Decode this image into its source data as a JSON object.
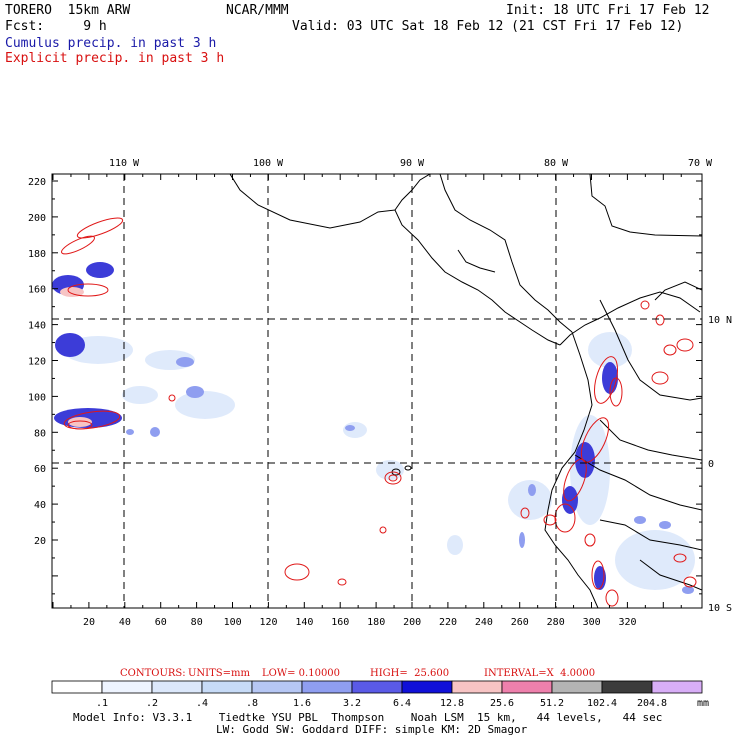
{
  "header": {
    "model": "TORERO  15km ARW",
    "org": "NCAR/MMM",
    "init": "Init: 18 UTC Fri 17 Feb 12",
    "fcst": "Fcst:     9 h",
    "valid": "Valid: 03 UTC Sat 18 Feb 12 (21 CST Fri 17 Feb 12)",
    "field1": "Cumulus precip. in past 3 h",
    "field2": "Explicit precip. in past 3 h"
  },
  "top_axis": [
    "110 W",
    "100 W",
    "90 W",
    "80 W",
    "70 W"
  ],
  "right_axis": [
    "10 N",
    "0",
    "10 S"
  ],
  "left_axis": [
    "220",
    "200",
    "180",
    "160",
    "140",
    "120",
    "100",
    "80",
    "60",
    "40",
    "20"
  ],
  "bottom_axis": [
    "20",
    "40",
    "60",
    "80",
    "100",
    "120",
    "140",
    "160",
    "180",
    "200",
    "220",
    "240",
    "260",
    "280",
    "300",
    "320"
  ],
  "contours": {
    "label": "CONTOURS:",
    "units": "UNITS=mm",
    "low": "LOW= 0.10000",
    "high": "HIGH=  25.600",
    "interval": "INTERVAL=X  4.0000"
  },
  "colorbar": {
    "values": [
      ".1",
      ".2",
      ".4",
      ".8",
      "1.6",
      "3.2",
      "6.4",
      "12.8",
      "25.6",
      "51.2",
      "102.4",
      "204.8"
    ],
    "unit": "mm",
    "colors": [
      "#ffffff",
      "#eef4ff",
      "#dce8fb",
      "#c7dbf7",
      "#b6c7f4",
      "#8f9ef0",
      "#5a5ae6",
      "#1010d8",
      "#f7c4c4",
      "#ee80ac",
      "#b4b4b4",
      "#3c3c3c",
      "#d8aef7"
    ]
  },
  "footer": {
    "line1": "Model Info: V3.3.1    Tiedtke YSU PBL  Thompson    Noah LSM  15 km,   44 levels,   44 sec",
    "line2": "LW: Godd SW: Goddard DIFF: simple KM: 2D Smagor"
  }
}
